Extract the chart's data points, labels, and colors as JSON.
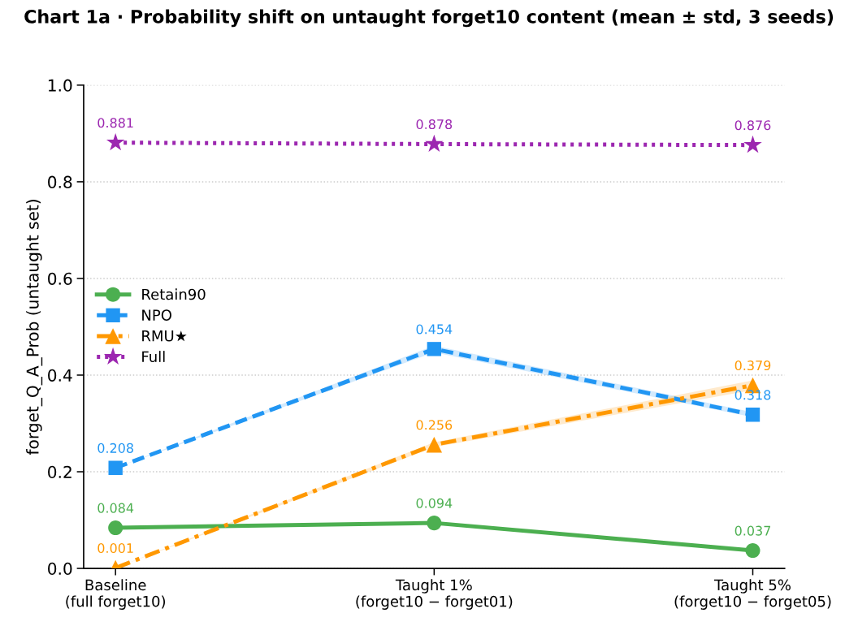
{
  "chart_data": {
    "type": "line",
    "title": "Chart 1a · Probability shift on untaught forget10 content (mean ± std, 3 seeds)",
    "ylabel": "forget_Q_A_Prob (untaught set)",
    "categories": [
      "Baseline\n(full forget10)",
      "Taught 1%\n(forget10 − forget01)",
      "Taught 5%\n(forget10 − forget05)"
    ],
    "series": [
      {
        "name": "Retain90",
        "color": "#4caf50",
        "values": [
          0.084,
          0.094,
          0.037
        ],
        "marker": "circle",
        "line_style": "solid"
      },
      {
        "name": "NPO",
        "color": "#2196f3",
        "values": [
          0.208,
          0.454,
          0.318
        ],
        "marker": "square",
        "line_style": "dashed",
        "lower": [
          0.208,
          0.447,
          0.313
        ],
        "upper": [
          0.208,
          0.461,
          0.323
        ]
      },
      {
        "name": "RMU★",
        "color": "#ff9800",
        "values": [
          0.001,
          0.256,
          0.379
        ],
        "marker": "triangle",
        "line_style": "dashdot",
        "lower": [
          0.001,
          0.251,
          0.369
        ],
        "upper": [
          0.001,
          0.261,
          0.389
        ]
      },
      {
        "name": "Full",
        "color": "#9c27b0",
        "values": [
          0.881,
          0.878,
          0.876
        ],
        "marker": "star",
        "line_style": "dotted"
      }
    ],
    "ylim": [
      0.0,
      1.0
    ],
    "yticks": [
      {
        "value": 0.0,
        "label": "0.0"
      },
      0.2,
      0.4,
      0.6,
      0.8,
      {
        "value": 1.0,
        "label": "1.0"
      }
    ],
    "grid": "y",
    "legend": "left",
    "data_labels": true
  }
}
